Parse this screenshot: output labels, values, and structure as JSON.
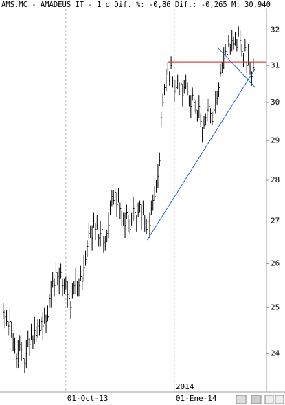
{
  "chart_data": {
    "type": "ohlc",
    "title": "AMS.MC - AMADEUS IT -  1 d Dif. %: -0,86 Dif.: -0,265 M: 30,940",
    "log_scale": true,
    "color": "#000000",
    "ylim": [
      23.2,
      32.6
    ],
    "yticks": [
      24,
      25,
      26,
      27,
      28,
      29,
      30,
      31,
      32
    ],
    "xlim": [
      -2,
      160
    ],
    "xticks": [
      {
        "value": 38,
        "label": "01-Oct-13"
      },
      {
        "value": 104,
        "label": "01-Ene-14"
      }
    ],
    "year_label": {
      "x": 104,
      "label": "2014"
    },
    "high": [
      25.1,
      24.95,
      24.95,
      24.7,
      25.0,
      24.7,
      24.45,
      24.35,
      24.0,
      24.3,
      24.4,
      24.25,
      24.15,
      23.9,
      24.3,
      24.5,
      24.35,
      24.65,
      24.4,
      24.8,
      24.6,
      24.75,
      24.75,
      24.8,
      24.9,
      25.0,
      24.85,
      25.05,
      25.3,
      25.6,
      25.8,
      25.65,
      26.05,
      25.8,
      25.9,
      26.0,
      25.65,
      25.65,
      25.7,
      25.6,
      25.4,
      25.15,
      25.55,
      25.6,
      25.9,
      25.6,
      25.65,
      25.95,
      25.7,
      26.2,
      26.3,
      26.55,
      26.95,
      26.9,
      26.9,
      27.2,
      26.95,
      27.15,
      26.7,
      27.0,
      27.0,
      26.65,
      26.65,
      26.8,
      27.2,
      27.5,
      27.75,
      27.75,
      27.8,
      27.7,
      27.8,
      27.45,
      27.25,
      27.2,
      27.2,
      27.4,
      27.15,
      27.05,
      27.2,
      27.6,
      27.4,
      27.15,
      27.45,
      27.5,
      27.4,
      27.5,
      27.15,
      27.05,
      27.1,
      27.2,
      27.5,
      27.65,
      27.85,
      28.0,
      28.4,
      28.7,
      29.75,
      30.25,
      30.5,
      30.9,
      31.1,
      30.85,
      31.25,
      30.7,
      30.6,
      30.6,
      30.75,
      30.55,
      30.6,
      30.5,
      30.6,
      30.75,
      30.55,
      30.2,
      30.2,
      30.4,
      30.15,
      30.05,
      29.8,
      30.2,
      29.7,
      29.35,
      29.65,
      29.7,
      30.1,
      30.1,
      29.85,
      29.75,
      29.9,
      30.3,
      30.3,
      30.55,
      31.05,
      31.1,
      31.5,
      31.6,
      31.45,
      31.85,
      31.6,
      32.0,
      31.8,
      31.95,
      31.75,
      32.1,
      32.0,
      31.6,
      31.35,
      31.75,
      31.1,
      31.6,
      31.1,
      30.85,
      31.19
    ],
    "low": [
      24.75,
      24.55,
      24.6,
      24.4,
      24.4,
      24.35,
      24.05,
      24.0,
      23.7,
      23.7,
      24.05,
      23.85,
      23.8,
      23.6,
      23.7,
      24.15,
      23.95,
      24.3,
      24.1,
      24.2,
      24.25,
      24.35,
      24.4,
      24.5,
      24.3,
      24.65,
      24.45,
      24.7,
      25.0,
      25.0,
      25.45,
      25.25,
      25.7,
      25.5,
      25.3,
      25.65,
      25.25,
      25.3,
      25.4,
      25.0,
      25.05,
      24.75,
      25.2,
      25.3,
      25.3,
      25.25,
      25.25,
      25.6,
      25.4,
      25.6,
      25.95,
      26.15,
      26.6,
      26.6,
      26.3,
      26.85,
      26.55,
      26.8,
      26.4,
      26.4,
      26.65,
      26.25,
      26.3,
      26.5,
      26.6,
      27.15,
      27.35,
      27.4,
      27.5,
      27.1,
      27.45,
      27.05,
      26.9,
      26.9,
      26.6,
      27.05,
      26.75,
      26.7,
      26.9,
      27.0,
      27.05,
      26.75,
      27.1,
      27.2,
      26.8,
      27.15,
      26.75,
      26.7,
      26.8,
      26.6,
      27.15,
      27.25,
      27.5,
      27.7,
      27.8,
      28.35,
      29.35,
      29.9,
      30.2,
      30.3,
      30.75,
      30.45,
      30.9,
      30.4,
      30.0,
      30.25,
      30.35,
      30.2,
      30.3,
      29.9,
      30.25,
      30.35,
      30.2,
      29.9,
      29.6,
      30.05,
      29.75,
      29.7,
      29.5,
      29.6,
      29.35,
      28.95,
      29.3,
      29.4,
      29.5,
      29.75,
      29.45,
      29.4,
      29.6,
      29.7,
      29.95,
      30.15,
      30.7,
      30.8,
      30.9,
      31.25,
      31.05,
      31.5,
      31.3,
      31.4,
      31.45,
      31.55,
      31.4,
      31.8,
      31.4,
      31.25,
      30.95,
      31.4,
      30.8,
      31.0,
      30.75,
      30.45,
      30.84
    ],
    "close": [
      24.9,
      24.8,
      24.7,
      24.6,
      24.7,
      24.5,
      24.3,
      24.1,
      23.9,
      24.0,
      24.2,
      24.1,
      23.9,
      23.8,
      24.0,
      24.3,
      24.2,
      24.4,
      24.3,
      24.5,
      24.4,
      24.6,
      24.5,
      24.7,
      24.6,
      24.8,
      24.7,
      24.8,
      25.2,
      25.3,
      25.6,
      25.5,
      25.8,
      25.7,
      25.6,
      25.8,
      25.5,
      25.4,
      25.6,
      25.3,
      25.2,
      25.0,
      25.3,
      25.5,
      25.6,
      25.4,
      25.5,
      25.7,
      25.6,
      25.9,
      26.1,
      26.4,
      26.7,
      26.8,
      26.6,
      27.0,
      26.8,
      26.9,
      26.6,
      26.7,
      26.8,
      26.5,
      26.4,
      26.7,
      26.9,
      27.3,
      27.6,
      27.5,
      27.7,
      27.4,
      27.6,
      27.3,
      27.0,
      27.1,
      26.9,
      27.2,
      27.0,
      26.8,
      27.1,
      27.3,
      27.2,
      27.0,
      27.2,
      27.4,
      27.1,
      27.3,
      27.0,
      26.8,
      27.0,
      26.9,
      27.3,
      27.5,
      27.6,
      27.9,
      28.1,
      28.5,
      29.6,
      30.0,
      30.4,
      30.6,
      30.9,
      30.7,
      31.0,
      30.6,
      30.3,
      30.4,
      30.6,
      30.3,
      30.5,
      30.2,
      30.4,
      30.6,
      30.3,
      30.1,
      29.9,
      30.2,
      30.0,
      29.8,
      29.7,
      29.9,
      29.5,
      29.2,
      29.4,
      29.6,
      29.8,
      29.9,
      29.7,
      29.5,
      29.8,
      30.0,
      30.1,
      30.4,
      30.8,
      31.0,
      31.2,
      31.4,
      31.3,
      31.6,
      31.5,
      31.7,
      31.6,
      31.8,
      31.5,
      32.0,
      31.7,
      31.4,
      31.2,
      31.5,
      31.0,
      31.3,
      30.9,
      30.7,
      30.94
    ],
    "lines": [
      {
        "color": "#cc2222",
        "x": [
          100,
          160
        ],
        "y": [
          31.1,
          31.1
        ]
      },
      {
        "color": "#1f5fd6",
        "x": [
          87.5,
          152.9
        ],
        "y": [
          26.55,
          30.9
        ]
      },
      {
        "color": "#1f5fd6",
        "x": [
          130.4,
          153.3
        ],
        "y": [
          31.5,
          30.4
        ]
      }
    ]
  }
}
